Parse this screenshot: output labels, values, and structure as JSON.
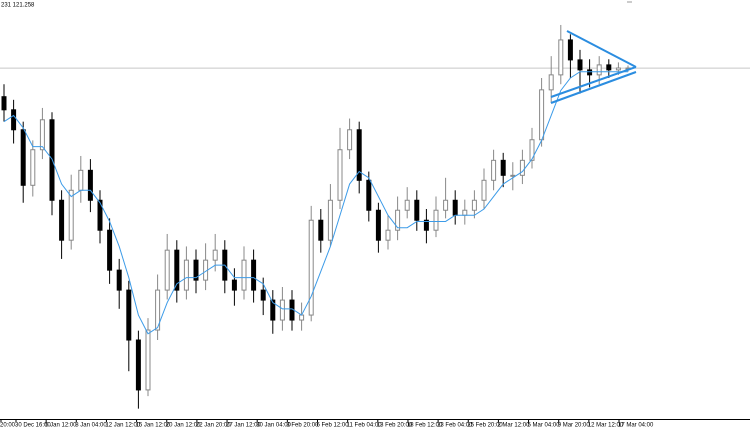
{
  "header": "231 121.258",
  "chart_data": {
    "type": "candlestick",
    "ylim": [
      115.65,
      122.35
    ],
    "price_line": 121.258,
    "up_color": "#888888",
    "down_color": "#000000",
    "ma_color": "#3c9be8",
    "time_labels": [
      "20:00",
      "30 Dec 16:00",
      "5 Jan 12:00",
      "8 Jan 04:00",
      "12 Jan 12:00",
      "15 Jan 12:00",
      "20 Jan 12:00",
      "22 Jan 20:00",
      "27 Jan 12:00",
      "30 Jan 04:00",
      "3 Feb 20:00",
      "6 Feb 12:00",
      "11 Feb 04:00",
      "13 Feb 20:00",
      "18 Feb 12:00",
      "23 Feb 04:00",
      "25 Feb 20:00",
      "2 Mar 12:00",
      "5 Mar 04:00",
      "9 Mar 20:00",
      "12 Mar 12:00",
      "17 Mar 04:00"
    ],
    "open": [
      120.8,
      120.59,
      120.27,
      119.38,
      119.95,
      120.43,
      119.14,
      118.5,
      119.3,
      119.62,
      119.14,
      118.66,
      118.02,
      117.7,
      116.9,
      116.1,
      117.06,
      117.7,
      118.34,
      117.7,
      118.18,
      117.86,
      118.18,
      118.34,
      117.86,
      117.7,
      118.18,
      117.7,
      117.54,
      117.22,
      117.54,
      117.22,
      117.3,
      118.82,
      118.5,
      119.14,
      119.95,
      120.27,
      119.46,
      118.98,
      118.5,
      118.66,
      118.98,
      119.14,
      118.82,
      118.66,
      118.98,
      119.14,
      118.9,
      118.98,
      119.14,
      119.46,
      119.78,
      119.54,
      119.54,
      119.78,
      120.11,
      120.91,
      121.15,
      121.71,
      121.39,
      121.23,
      121.15,
      121.31,
      121.23,
      121.26
    ],
    "high": [
      121.0,
      120.75,
      120.4,
      120.1,
      120.62,
      120.55,
      119.3,
      119.55,
      119.85,
      119.8,
      119.3,
      118.85,
      118.2,
      117.85,
      117.05,
      117.25,
      117.95,
      118.6,
      118.5,
      118.4,
      118.35,
      118.45,
      118.6,
      118.5,
      118.05,
      118.4,
      118.35,
      117.9,
      117.7,
      117.75,
      117.7,
      117.5,
      119.05,
      119.0,
      119.4,
      120.3,
      120.45,
      120.4,
      119.6,
      119.1,
      118.9,
      119.2,
      119.35,
      119.3,
      119.0,
      119.2,
      119.5,
      119.3,
      119.15,
      119.3,
      119.65,
      119.95,
      119.9,
      119.75,
      119.95,
      120.3,
      121.1,
      121.45,
      121.95,
      121.8,
      121.55,
      121.4,
      121.45,
      121.4,
      121.35,
      121.3
    ],
    "low": [
      120.4,
      120.05,
      119.1,
      119.2,
      119.8,
      118.9,
      118.2,
      118.35,
      119.1,
      118.95,
      118.45,
      117.8,
      117.4,
      116.4,
      115.8,
      116.0,
      116.9,
      117.55,
      117.5,
      117.55,
      117.65,
      117.7,
      118.0,
      117.65,
      117.45,
      117.55,
      117.5,
      117.3,
      117.0,
      117.05,
      117.05,
      117.05,
      117.2,
      118.3,
      118.4,
      119.0,
      119.8,
      119.25,
      118.8,
      118.3,
      118.35,
      118.5,
      118.85,
      118.65,
      118.45,
      118.55,
      118.85,
      118.75,
      118.75,
      118.85,
      119.0,
      119.3,
      119.35,
      119.3,
      119.4,
      119.65,
      120.0,
      120.7,
      121.0,
      121.1,
      120.85,
      120.95,
      121.0,
      121.1,
      121.15,
      121.2
    ],
    "close": [
      120.59,
      120.27,
      119.38,
      119.95,
      120.43,
      119.14,
      118.5,
      119.3,
      119.62,
      119.14,
      118.66,
      118.02,
      117.7,
      116.9,
      116.1,
      117.06,
      117.7,
      118.34,
      117.7,
      118.18,
      117.86,
      118.18,
      118.34,
      117.86,
      117.7,
      118.18,
      117.7,
      117.54,
      117.22,
      117.54,
      117.22,
      117.3,
      118.82,
      118.5,
      119.14,
      119.95,
      120.27,
      119.46,
      118.98,
      118.5,
      118.66,
      118.98,
      119.14,
      118.82,
      118.66,
      118.98,
      119.14,
      118.9,
      118.98,
      119.14,
      119.46,
      119.78,
      119.54,
      119.54,
      119.78,
      120.11,
      120.91,
      121.15,
      121.71,
      121.39,
      121.23,
      121.15,
      121.31,
      121.23,
      121.26,
      121.26
    ],
    "ma": [
      120.4,
      120.5,
      120.3,
      120.0,
      120.0,
      119.8,
      119.4,
      119.2,
      119.3,
      119.3,
      119.1,
      118.8,
      118.4,
      117.9,
      117.3,
      117.0,
      117.1,
      117.5,
      117.8,
      117.9,
      117.9,
      118.0,
      118.1,
      118.1,
      117.9,
      117.9,
      117.9,
      117.8,
      117.5,
      117.4,
      117.4,
      117.3,
      117.6,
      118.0,
      118.4,
      118.9,
      119.4,
      119.6,
      119.5,
      119.2,
      118.9,
      118.7,
      118.7,
      118.8,
      118.8,
      118.8,
      118.8,
      118.9,
      118.9,
      118.9,
      119.0,
      119.2,
      119.4,
      119.5,
      119.6,
      119.8,
      120.1,
      120.5,
      120.9,
      121.1,
      121.2,
      121.2,
      121.2,
      121.2,
      121.2,
      121.2
    ]
  }
}
